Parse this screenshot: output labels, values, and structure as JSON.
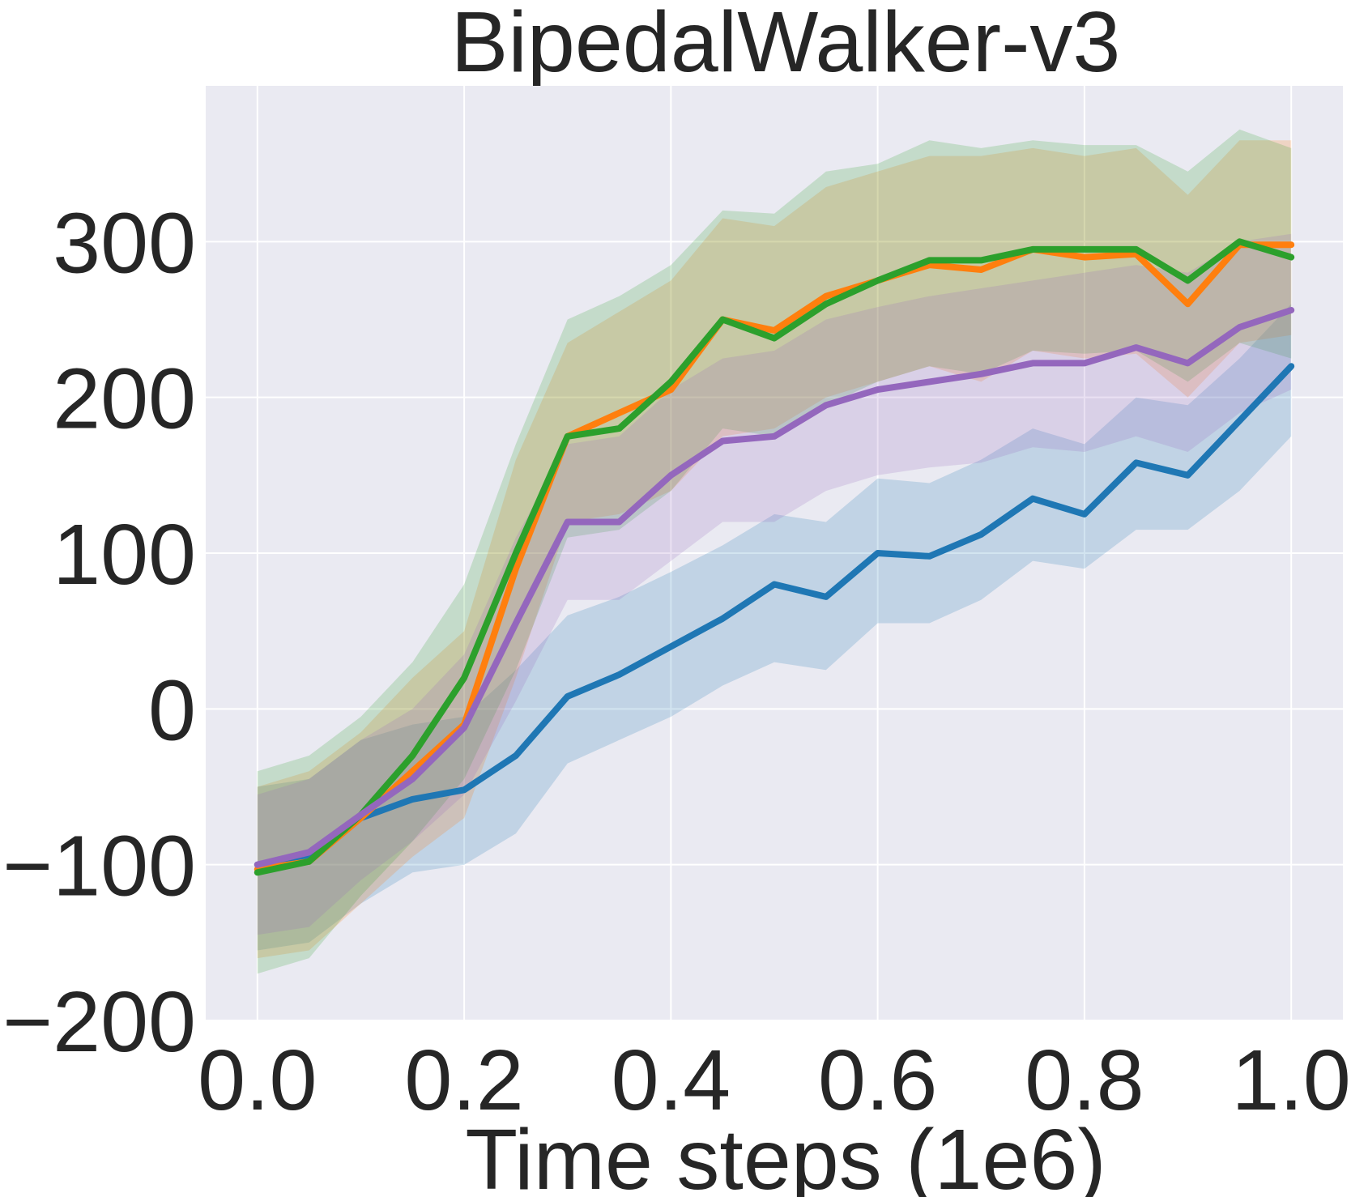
{
  "chart_data": {
    "type": "line",
    "title": "BipedalWalker-v3",
    "xlabel": "Time steps (1e6)",
    "ylabel": "",
    "xlim": [
      -0.05,
      1.05
    ],
    "ylim": [
      -200,
      400
    ],
    "xticks": [
      0.0,
      0.2,
      0.4,
      0.6,
      0.8,
      1.0
    ],
    "xtick_labels": [
      "0.0",
      "0.2",
      "0.4",
      "0.6",
      "0.8",
      "1.0"
    ],
    "yticks": [
      -200,
      -100,
      0,
      100,
      200,
      300
    ],
    "ytick_labels": [
      "−200",
      "−100",
      "0",
      "100",
      "200",
      "300"
    ],
    "grid": true,
    "background": "#eaeaf2",
    "x": [
      0.0,
      0.05,
      0.1,
      0.15,
      0.2,
      0.25,
      0.3,
      0.35,
      0.4,
      0.45,
      0.5,
      0.55,
      0.6,
      0.65,
      0.7,
      0.75,
      0.8,
      0.85,
      0.9,
      0.95,
      1.0
    ],
    "series": [
      {
        "color": "#1f77b4",
        "values": [
          -100,
          -96,
          -70,
          -58,
          -52,
          -30,
          8,
          22,
          40,
          58,
          80,
          72,
          100,
          98,
          112,
          135,
          125,
          158,
          150,
          185,
          220
        ],
        "lower": [
          -155,
          -150,
          -125,
          -105,
          -100,
          -80,
          -35,
          -20,
          -5,
          15,
          30,
          25,
          55,
          55,
          70,
          95,
          90,
          115,
          115,
          140,
          175
        ],
        "upper": [
          -50,
          -45,
          -20,
          -10,
          -5,
          25,
          60,
          72,
          88,
          105,
          125,
          120,
          148,
          145,
          160,
          180,
          170,
          200,
          195,
          225,
          260
        ]
      },
      {
        "color": "#ff7f0e",
        "values": [
          -103,
          -98,
          -70,
          -40,
          -10,
          90,
          175,
          190,
          205,
          250,
          243,
          265,
          275,
          285,
          282,
          295,
          290,
          292,
          260,
          298,
          298
        ],
        "lower": [
          -160,
          -155,
          -125,
          -95,
          -70,
          20,
          120,
          125,
          140,
          175,
          180,
          200,
          210,
          220,
          210,
          230,
          225,
          228,
          200,
          235,
          240
        ],
        "upper": [
          -50,
          -40,
          -15,
          20,
          50,
          160,
          235,
          255,
          275,
          315,
          310,
          335,
          345,
          355,
          355,
          360,
          355,
          360,
          330,
          365,
          365
        ]
      },
      {
        "color": "#2ca02c",
        "values": [
          -105,
          -98,
          -68,
          -30,
          20,
          100,
          175,
          180,
          210,
          250,
          238,
          260,
          275,
          288,
          288,
          295,
          295,
          295,
          275,
          300,
          290
        ],
        "lower": [
          -170,
          -160,
          -120,
          -85,
          -45,
          25,
          110,
          115,
          140,
          180,
          175,
          195,
          210,
          220,
          215,
          230,
          228,
          230,
          210,
          235,
          225
        ],
        "upper": [
          -40,
          -30,
          -5,
          30,
          80,
          170,
          250,
          265,
          285,
          320,
          318,
          345,
          350,
          365,
          360,
          365,
          362,
          362,
          345,
          372,
          360
        ]
      },
      {
        "color": "#9467bd",
        "values": [
          -100,
          -92,
          -68,
          -45,
          -12,
          55,
          120,
          120,
          150,
          172,
          175,
          195,
          205,
          210,
          215,
          222,
          222,
          232,
          222,
          245,
          256
        ],
        "lower": [
          -145,
          -140,
          -110,
          -85,
          -55,
          5,
          70,
          70,
          95,
          120,
          120,
          140,
          150,
          155,
          158,
          168,
          165,
          175,
          165,
          190,
          205
        ],
        "upper": [
          -55,
          -45,
          -20,
          0,
          35,
          110,
          170,
          175,
          205,
          225,
          230,
          250,
          258,
          265,
          270,
          275,
          280,
          285,
          280,
          300,
          305
        ]
      }
    ]
  }
}
